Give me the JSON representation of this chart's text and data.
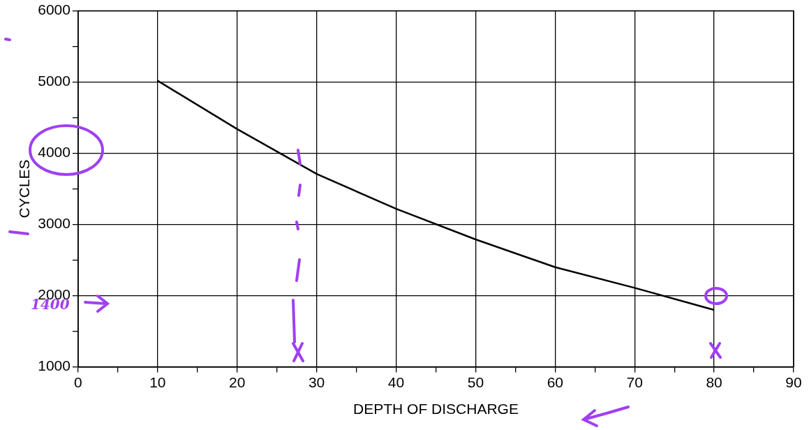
{
  "chart_data": {
    "type": "line",
    "xlabel": "DEPTH OF DISCHARGE",
    "ylabel": "CYCLES",
    "x": [
      10,
      20,
      30,
      40,
      50,
      60,
      70,
      80
    ],
    "series": [
      {
        "color": "#000000",
        "values": [
          5020,
          4340,
          3710,
          3220,
          2790,
          2400,
          2110,
          1800
        ]
      }
    ],
    "xlim": [
      0,
      90
    ],
    "ylim": [
      1000,
      6000
    ],
    "xticks": [
      0,
      {
        "value": 5,
        "label": null
      },
      10,
      {
        "value": 15,
        "label": null
      },
      20,
      {
        "value": 25,
        "label": null
      },
      30,
      {
        "value": 35,
        "label": null
      },
      40,
      {
        "value": 45,
        "label": null
      },
      50,
      {
        "value": 55,
        "label": null
      },
      60,
      {
        "value": 65,
        "label": null
      },
      70,
      {
        "value": 75,
        "label": null
      },
      80,
      {
        "value": 85,
        "label": null
      },
      90
    ],
    "yticks": [
      1000,
      {
        "value": 1500,
        "label": null
      },
      2000,
      {
        "value": 2500,
        "label": null
      },
      3000,
      {
        "value": 3500,
        "label": null
      },
      4000,
      {
        "value": 4500,
        "label": null
      },
      5000,
      {
        "value": 5500,
        "label": null
      },
      6000
    ],
    "grid": true,
    "legend": false,
    "marker": "none",
    "line_style": "solid",
    "annotations": [
      "1400"
    ]
  }
}
